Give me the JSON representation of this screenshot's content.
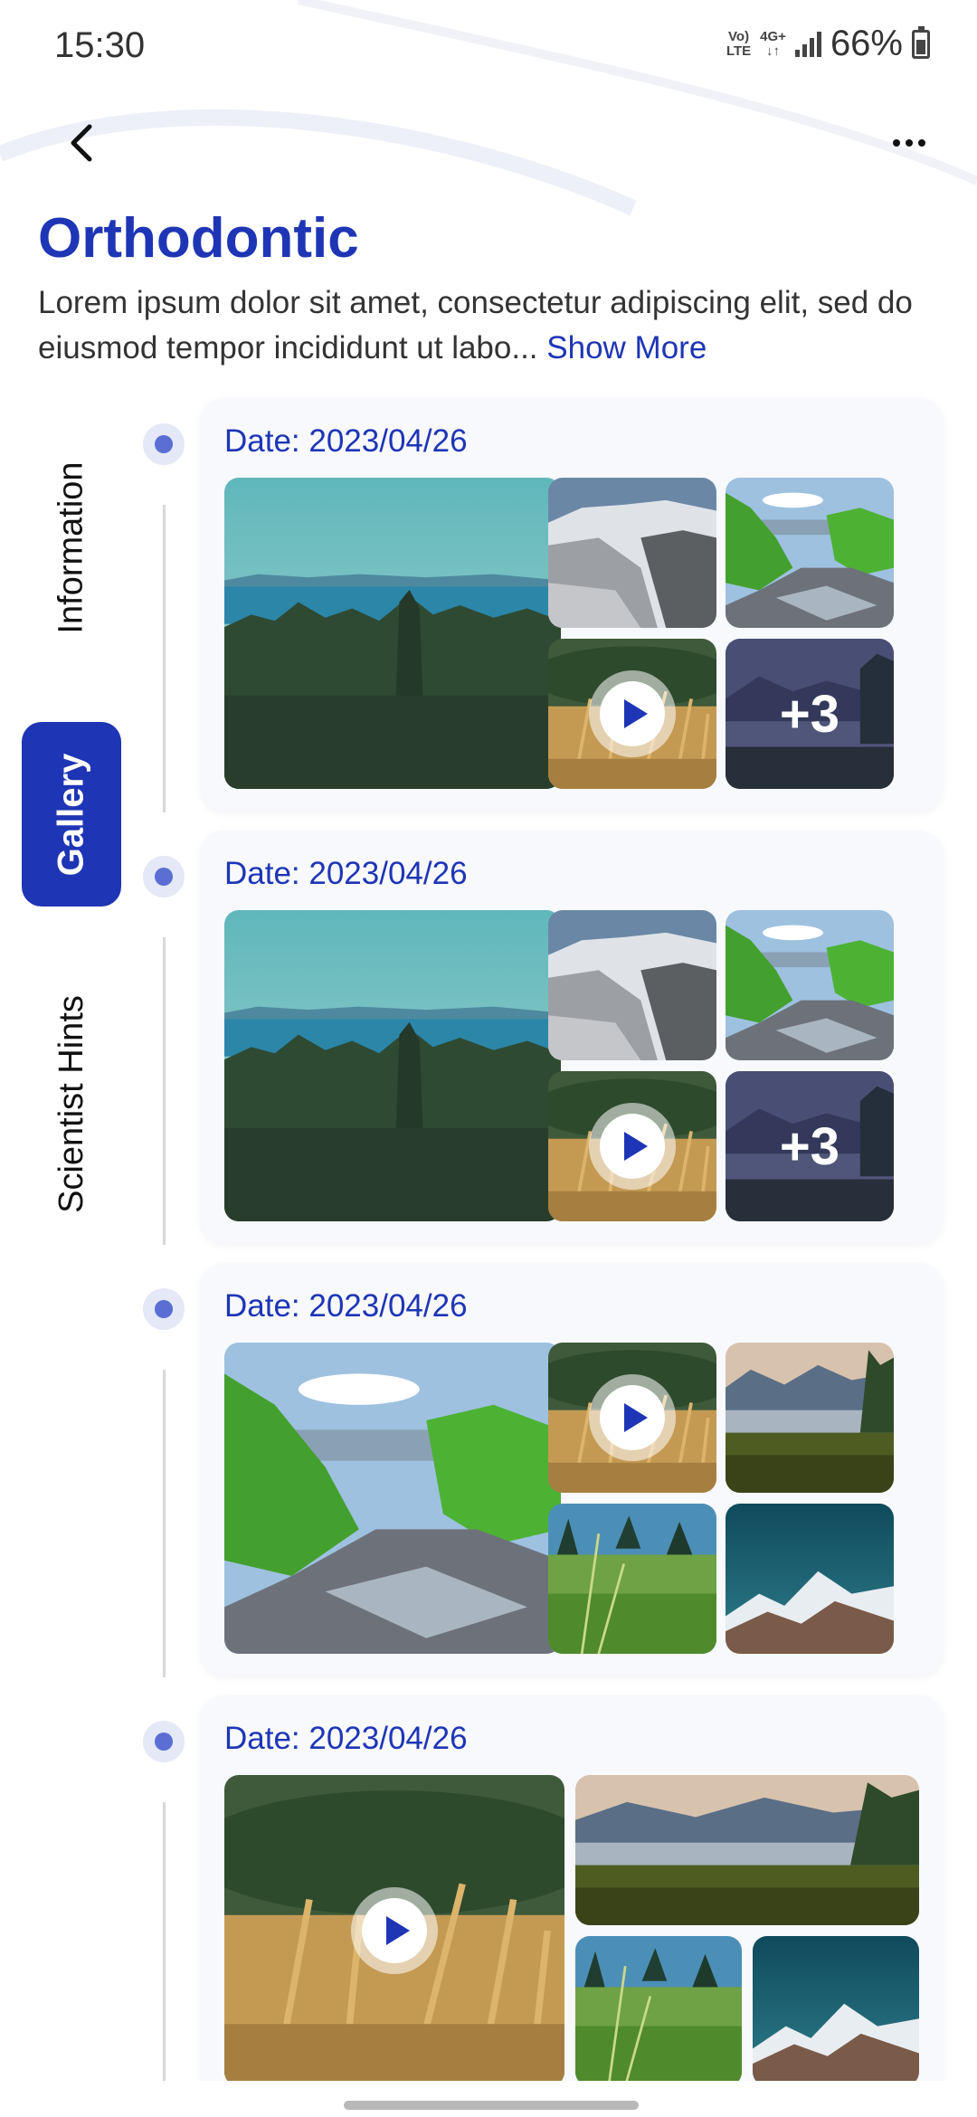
{
  "status_bar": {
    "time": "15:30",
    "network_top": "Vo)",
    "network_bottom": "LTE",
    "data_top": "4G+",
    "data_bottom": "↓↑",
    "battery": "66%"
  },
  "nav": {
    "back_icon": "chevron-left-icon",
    "more_icon": "more-horizontal-icon"
  },
  "header": {
    "title": "Orthodontic",
    "description": "Lorem ipsum dolor sit amet, consectetur adipiscing elit, sed do eiusmod tempor incididunt ut labo...",
    "show_more": "Show More"
  },
  "tabs": [
    {
      "label": "Information",
      "active": false
    },
    {
      "label": "Gallery",
      "active": true
    },
    {
      "label": "Scientist Hints",
      "active": false
    }
  ],
  "entries": [
    {
      "date": "Date: 2023/04/26",
      "items": [
        {
          "scene": "sea-forest",
          "type": "photo"
        },
        {
          "scene": "snow-valley",
          "type": "photo"
        },
        {
          "scene": "green-creek",
          "type": "photo"
        },
        {
          "scene": "wheat",
          "type": "video"
        },
        {
          "scene": "lake-dusk",
          "type": "photo",
          "more": "+3"
        }
      ]
    },
    {
      "date": "Date: 2023/04/26",
      "items": [
        {
          "scene": "sea-forest",
          "type": "photo"
        },
        {
          "scene": "snow-valley",
          "type": "photo"
        },
        {
          "scene": "green-creek",
          "type": "photo"
        },
        {
          "scene": "wheat",
          "type": "video"
        },
        {
          "scene": "lake-dusk",
          "type": "photo",
          "more": "+3"
        }
      ]
    },
    {
      "date": "Date: 2023/04/26",
      "items": [
        {
          "scene": "green-creek",
          "type": "photo"
        },
        {
          "scene": "wheat",
          "type": "video"
        },
        {
          "scene": "lake-reeds",
          "type": "photo"
        },
        {
          "scene": "grass-trees",
          "type": "photo"
        },
        {
          "scene": "snow-peak",
          "type": "photo"
        }
      ]
    },
    {
      "date": "Date: 2023/04/26",
      "items": [
        {
          "scene": "wheat",
          "type": "video"
        },
        {
          "scene": "lake-reeds",
          "type": "photo"
        },
        {
          "scene": "grass-trees",
          "type": "photo"
        },
        {
          "scene": "snow-peak",
          "type": "photo"
        }
      ]
    }
  ]
}
